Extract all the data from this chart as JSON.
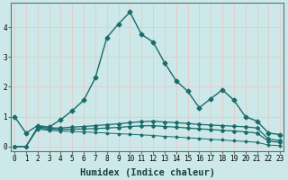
{
  "xlabel": "Humidex (Indice chaleur)",
  "bg_color": "#cce8e8",
  "line_color": "#1a6b6b",
  "grid_color": "#e8c8c8",
  "series": [
    {
      "x": [
        0,
        1,
        2,
        3,
        4,
        5,
        6,
        7,
        8,
        9,
        10,
        11,
        12,
        13,
        14,
        15,
        16,
        17,
        18,
        19,
        20,
        21,
        22,
        23
      ],
      "y": [
        1.0,
        0.45,
        0.7,
        0.65,
        0.9,
        1.2,
        1.55,
        2.3,
        3.65,
        4.1,
        4.5,
        3.75,
        3.5,
        2.8,
        2.2,
        1.85,
        1.3,
        1.6,
        1.9,
        1.55,
        1.0,
        0.85,
        0.45,
        0.4
      ],
      "style": "-",
      "marker": "D",
      "ms": 2.5,
      "lw": 1.0
    },
    {
      "x": [
        0,
        1,
        2,
        3,
        4,
        5,
        6,
        7,
        8,
        9,
        10,
        11,
        12,
        13,
        14,
        15,
        16,
        17,
        18,
        19,
        20,
        21,
        22,
        23
      ],
      "y": [
        0.0,
        0.0,
        0.65,
        0.62,
        0.62,
        0.65,
        0.67,
        0.7,
        0.73,
        0.76,
        0.8,
        0.83,
        0.85,
        0.82,
        0.8,
        0.77,
        0.74,
        0.72,
        0.7,
        0.68,
        0.66,
        0.62,
        0.25,
        0.2
      ],
      "style": "-",
      "marker": "D",
      "ms": 2.0,
      "lw": 0.9
    },
    {
      "x": [
        0,
        1,
        2,
        3,
        4,
        5,
        6,
        7,
        8,
        9,
        10,
        11,
        12,
        13,
        14,
        15,
        16,
        17,
        18,
        19,
        20,
        21,
        22,
        23
      ],
      "y": [
        0.0,
        0.0,
        0.62,
        0.58,
        0.57,
        0.58,
        0.59,
        0.6,
        0.62,
        0.64,
        0.67,
        0.69,
        0.7,
        0.67,
        0.65,
        0.62,
        0.59,
        0.57,
        0.54,
        0.52,
        0.49,
        0.45,
        0.18,
        0.14
      ],
      "style": "-",
      "marker": "D",
      "ms": 2.0,
      "lw": 0.9
    },
    {
      "x": [
        0,
        1,
        2,
        3,
        4,
        5,
        6,
        7,
        8,
        9,
        10,
        11,
        12,
        13,
        14,
        15,
        16,
        17,
        18,
        19,
        20,
        21,
        22,
        23
      ],
      "y": [
        0.0,
        0.0,
        0.58,
        0.54,
        0.52,
        0.5,
        0.49,
        0.47,
        0.45,
        0.43,
        0.41,
        0.39,
        0.37,
        0.34,
        0.32,
        0.29,
        0.27,
        0.24,
        0.22,
        0.19,
        0.17,
        0.14,
        0.05,
        0.03
      ],
      "style": "-",
      "marker": "D",
      "ms": 1.5,
      "lw": 0.7
    }
  ],
  "xlim": [
    0,
    23
  ],
  "ylim": [
    -0.15,
    4.8
  ],
  "yticks": [
    0,
    1,
    2,
    3,
    4
  ],
  "xticks": [
    0,
    1,
    2,
    3,
    4,
    5,
    6,
    7,
    8,
    9,
    10,
    11,
    12,
    13,
    14,
    15,
    16,
    17,
    18,
    19,
    20,
    21,
    22,
    23
  ],
  "tick_fontsize": 5.5,
  "xlabel_fontsize": 7.5
}
